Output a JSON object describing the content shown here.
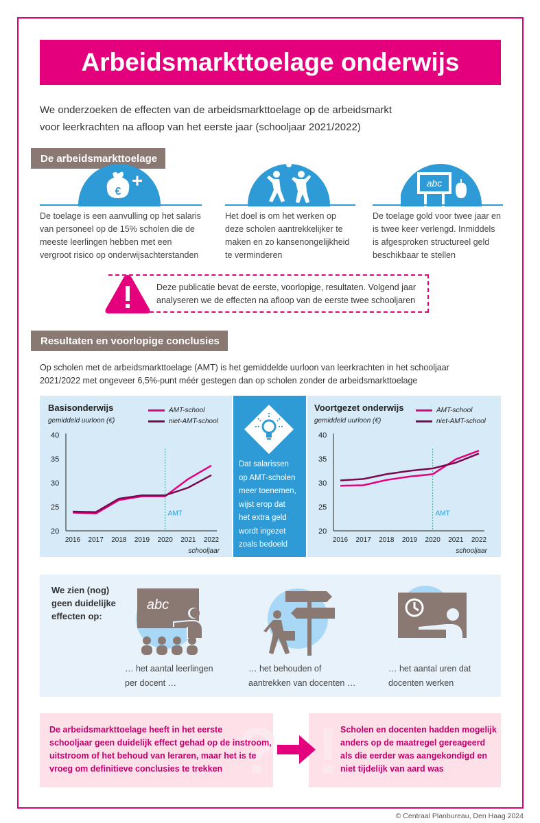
{
  "title": "Arbeidsmarkttoelage onderwijs",
  "intro": {
    "line1": "We onderzoeken de effecten van de arbeidsmarkttoelage op de arbeidsmarkt",
    "line2": "voor leerkrachten na afloop van het eerste jaar (schooljaar 2021/2022)"
  },
  "section1": {
    "tag": "De arbeidsmarkttoelage",
    "columns": [
      {
        "icon": "euro-purse-icon",
        "lines": [
          "De toelage is een aanvulling op het salaris",
          "van personeel op de 15% scholen die de",
          "meeste leerlingen hebben met een",
          "vergroot risico op onderwijsachterstanden"
        ]
      },
      {
        "icon": "children-playing-icon",
        "lines": [
          "Het doel is om het werken op",
          "deze scholen aantrekkelijker te",
          "maken en zo kansenongelijkheid",
          "te verminderen"
        ]
      },
      {
        "icon": "blackboard-abc-icon",
        "lines": [
          "De toelage gold voor twee jaar en",
          "is twee keer verlengd. Inmiddels",
          "is afgesproken structureel geld",
          "beschikbaar te stellen"
        ]
      }
    ]
  },
  "notice": {
    "line1": "Deze publicatie bevat de eerste, voorlopige, resultaten. Volgend jaar",
    "line2": "analyseren we de effecten na afloop van de eerste twee schooljaren"
  },
  "section2": {
    "tag": "Resultaten en voorlopige conclusies",
    "line1": "Op scholen met de arbeidsmarkttoelage (AMT) is het gemiddelde uurloon van leerkrachten in het schooljaar",
    "line2": "2021/2022 met ongeveer 6,5%-punt méér gestegen dan op scholen zonder de arbeidsmarkttoelage"
  },
  "mid_panel": {
    "lines": [
      "Dat salarissen",
      "op AMT-scholen",
      "meer toenemen,",
      "wijst erop dat",
      "het extra geld",
      "wordt ingezet",
      "zoals bedoeld"
    ]
  },
  "colors": {
    "pink": "#e4007c",
    "purple": "#7a0a50",
    "blue": "#2e9bd6",
    "taupe": "#8a7872"
  },
  "chart_data": [
    {
      "type": "line",
      "title": "Basisonderwijs",
      "ylabel": "gemiddeld uurloon (€)",
      "xlabel": "schooljaar",
      "x": [
        "2016",
        "2017",
        "2018",
        "2019",
        "2020",
        "2021",
        "2022"
      ],
      "ylim": [
        20,
        40
      ],
      "yticks": [
        "20",
        "25",
        "30",
        "35",
        "40"
      ],
      "marker_label": "AMT",
      "marker_x": "2020",
      "series": [
        {
          "name": "AMT-school",
          "color": "#e4007c",
          "values": [
            23.8,
            23.6,
            26.4,
            27.2,
            27.2,
            30.8,
            33.6
          ]
        },
        {
          "name": "niet-AMT-school",
          "color": "#7a0a50",
          "values": [
            24.0,
            23.9,
            26.7,
            27.4,
            27.4,
            29.0,
            31.6
          ]
        }
      ],
      "legend": "top-right"
    },
    {
      "type": "line",
      "title": "Voortgezet onderwijs",
      "ylabel": "gemiddeld uurloon (€)",
      "xlabel": "schooljaar",
      "x": [
        "2016",
        "2017",
        "2018",
        "2019",
        "2020",
        "2021",
        "2022"
      ],
      "ylim": [
        20,
        40
      ],
      "yticks": [
        "20",
        "25",
        "30",
        "35",
        "40"
      ],
      "marker_label": "AMT",
      "marker_x": "2020",
      "series": [
        {
          "name": "AMT-school",
          "color": "#e4007c",
          "values": [
            29.4,
            29.5,
            30.6,
            31.3,
            31.8,
            34.9,
            36.7
          ]
        },
        {
          "name": "niet-AMT-school",
          "color": "#7a0a50",
          "values": [
            30.5,
            30.8,
            31.8,
            32.5,
            33.0,
            34.2,
            36.1
          ]
        }
      ],
      "legend": "top-right"
    }
  ],
  "no_effects": {
    "title_lines": [
      "We zien (nog)",
      "geen duidelijke",
      "effecten op:"
    ],
    "items": [
      {
        "icon": "teacher-class-icon",
        "lines": [
          "… het aantal leerlingen",
          "per docent …"
        ]
      },
      {
        "icon": "signpost-walker-icon",
        "lines": [
          "… het behouden of",
          "aantrekken van docenten …"
        ]
      },
      {
        "icon": "clock-teacher-icon",
        "lines": [
          "… het aantal uren dat",
          "docenten werken"
        ]
      }
    ]
  },
  "conclusion": {
    "left_lines": [
      "De arbeidsmarkttoelage heeft in het eerste",
      "schooljaar geen duidelijk effect gehad op de instroom,",
      "uitstroom of het behoud van leraren, maar het is te",
      "vroeg om definitieve conclusies te trekken"
    ],
    "right_lines": [
      "Scholen en docenten hadden mogelijk",
      "anders op de maatregel gereageerd",
      "als die eerder was aangekondigd en",
      "niet tijdelijk van aard was"
    ]
  },
  "footer": "© Centraal Planbureau, Den Haag 2024"
}
